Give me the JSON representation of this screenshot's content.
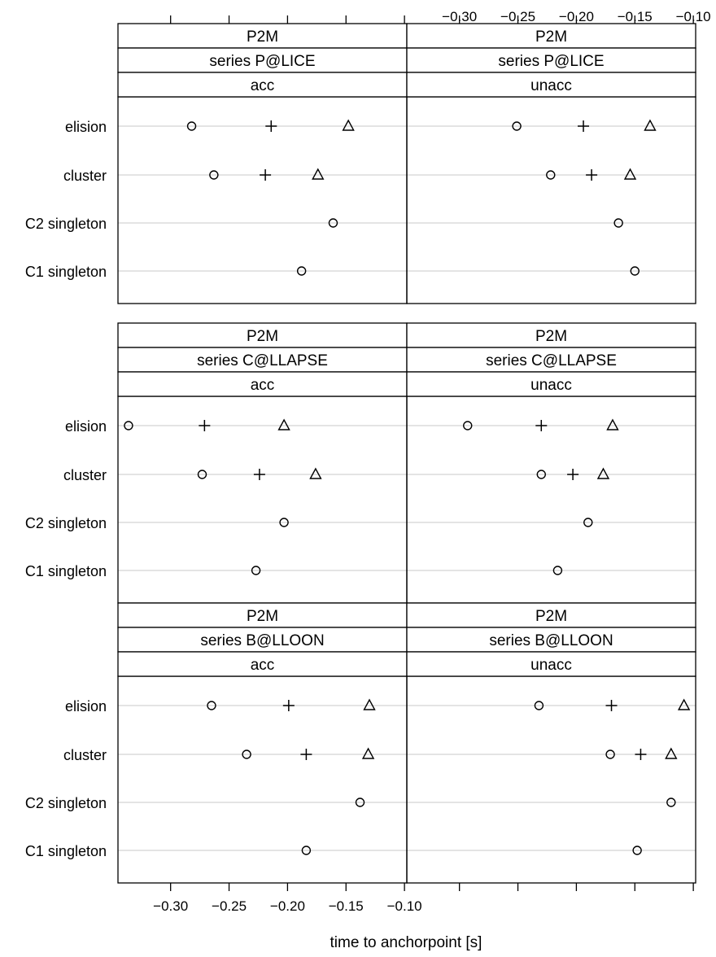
{
  "chart_data": {
    "type": "scatter",
    "subtype": "dotplot",
    "xlabel": "time to anchorpoint [s]",
    "xlim": [
      -0.345,
      -0.098
    ],
    "x_ticks": [
      -0.3,
      -0.25,
      -0.2,
      -0.15,
      -0.1
    ],
    "x_tick_labels": [
      "−0.30",
      "−0.25",
      "−0.20",
      "−0.15",
      "−0.10"
    ],
    "categories": [
      "elision",
      "cluster",
      "C2 singleton",
      "C1 singleton"
    ],
    "marker_symbols": {
      "circle": "circle",
      "plus": "plus",
      "triangle": "triangle"
    },
    "grid": "horizontal",
    "legend": "none",
    "panels": [
      {
        "strips": [
          "P2M",
          "series P@LICE",
          "acc"
        ],
        "points": [
          {
            "category": "elision",
            "circle": -0.282,
            "plus": -0.214,
            "triangle": -0.148
          },
          {
            "category": "cluster",
            "circle": -0.263,
            "plus": -0.219,
            "triangle": -0.174
          },
          {
            "category": "C2 singleton",
            "circle": -0.161
          },
          {
            "category": "C1 singleton",
            "circle": -0.188
          }
        ]
      },
      {
        "strips": [
          "P2M",
          "series P@LICE",
          "unacc"
        ],
        "points": [
          {
            "category": "elision",
            "circle": -0.251,
            "plus": -0.194,
            "triangle": -0.137
          },
          {
            "category": "cluster",
            "circle": -0.222,
            "plus": -0.187,
            "triangle": -0.154
          },
          {
            "category": "C2 singleton",
            "circle": -0.164
          },
          {
            "category": "C1 singleton",
            "circle": -0.15
          }
        ]
      },
      {
        "strips": [
          "P2M",
          "series C@LLAPSE",
          "acc"
        ],
        "points": [
          {
            "category": "elision",
            "circle": -0.336,
            "plus": -0.271,
            "triangle": -0.203
          },
          {
            "category": "cluster",
            "circle": -0.273,
            "plus": -0.224,
            "triangle": -0.176
          },
          {
            "category": "C2 singleton",
            "circle": -0.203
          },
          {
            "category": "C1 singleton",
            "circle": -0.227
          }
        ]
      },
      {
        "strips": [
          "P2M",
          "series C@LLAPSE",
          "unacc"
        ],
        "points": [
          {
            "category": "elision",
            "circle": -0.293,
            "plus": -0.23,
            "triangle": -0.169
          },
          {
            "category": "cluster",
            "circle": -0.23,
            "plus": -0.203,
            "triangle": -0.177
          },
          {
            "category": "C2 singleton",
            "circle": -0.19
          },
          {
            "category": "C1 singleton",
            "circle": -0.216
          }
        ]
      },
      {
        "strips": [
          "P2M",
          "series B@LLOON",
          "acc"
        ],
        "points": [
          {
            "category": "elision",
            "circle": -0.265,
            "plus": -0.199,
            "triangle": -0.13
          },
          {
            "category": "cluster",
            "circle": -0.235,
            "plus": -0.184,
            "triangle": -0.131
          },
          {
            "category": "C2 singleton",
            "circle": -0.138
          },
          {
            "category": "C1 singleton",
            "circle": -0.184
          }
        ]
      },
      {
        "strips": [
          "P2M",
          "series B@LLOON",
          "unacc"
        ],
        "points": [
          {
            "category": "elision",
            "circle": -0.232,
            "plus": -0.17,
            "triangle": -0.108
          },
          {
            "category": "cluster",
            "circle": -0.171,
            "plus": -0.145,
            "triangle": -0.119
          },
          {
            "category": "C2 singleton",
            "circle": -0.119
          },
          {
            "category": "C1 singleton",
            "circle": -0.148
          }
        ]
      }
    ]
  }
}
